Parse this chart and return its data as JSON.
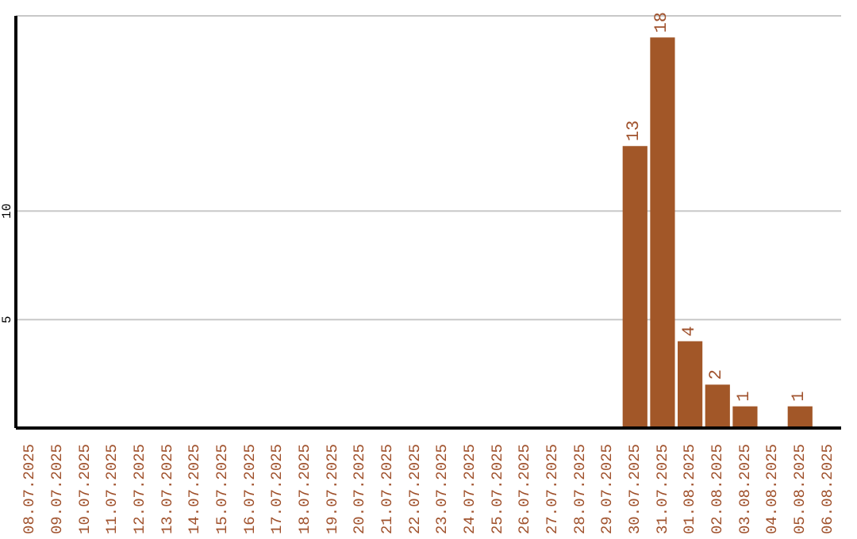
{
  "chart_data": {
    "type": "bar",
    "categories": [
      "08.07.2025",
      "09.07.2025",
      "10.07.2025",
      "11.07.2025",
      "12.07.2025",
      "13.07.2025",
      "14.07.2025",
      "15.07.2025",
      "16.07.2025",
      "17.07.2025",
      "18.07.2025",
      "19.07.2025",
      "20.07.2025",
      "21.07.2025",
      "22.07.2025",
      "23.07.2025",
      "24.07.2025",
      "25.07.2025",
      "26.07.2025",
      "27.07.2025",
      "28.07.2025",
      "29.07.2025",
      "30.07.2025",
      "31.07.2025",
      "01.08.2025",
      "02.08.2025",
      "03.08.2025",
      "04.08.2025",
      "05.08.2025",
      "06.08.2025"
    ],
    "values": [
      0,
      0,
      0,
      0,
      0,
      0,
      0,
      0,
      0,
      0,
      0,
      0,
      0,
      0,
      0,
      0,
      0,
      0,
      0,
      0,
      0,
      0,
      13,
      18,
      4,
      2,
      1,
      0,
      1,
      0
    ],
    "value_labels": [
      null,
      null,
      null,
      null,
      null,
      null,
      null,
      null,
      null,
      null,
      null,
      null,
      null,
      null,
      null,
      null,
      null,
      null,
      null,
      null,
      null,
      null,
      "13",
      "18",
      "4",
      "2",
      "1",
      null,
      "1",
      null
    ],
    "color": "#a25728",
    "ylim": [
      0,
      19
    ],
    "yticks": [
      5,
      10
    ],
    "grid": "y"
  }
}
